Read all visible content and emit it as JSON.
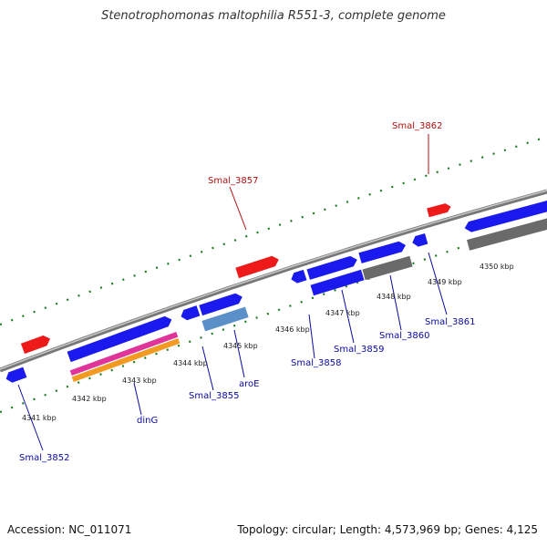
{
  "title": "Stenotrophomonas maltophilia R551-3, complete genome",
  "footer": {
    "accession": "Accession: NC_011071",
    "topology": "Topology: circular; Length: 4,573,969 bp; Genes: 4,125"
  },
  "colors": {
    "backbone": "#8c8c8c",
    "cds": "#1a1aee",
    "pseudo_or_red": "#ee1a1a",
    "grey_gene": "#6a6a6a",
    "tick": "#1e7b1e",
    "label_blue": "#0a0aa0",
    "label_red": "#b01010",
    "steel": "#5b8fc7",
    "pink": "#e0349a",
    "orange": "#f39a22"
  },
  "kbp_labels": [
    "4341 kbp",
    "4342 kbp",
    "4343 kbp",
    "4344 kbp",
    "4345 kbp",
    "4346 kbp",
    "4347 kbp",
    "4348 kbp",
    "4349 kbp",
    "4350 kbp"
  ],
  "gene_labels": {
    "Smal_3862": "Smal_3862",
    "Smal_3857": "Smal_3857",
    "Smal_3852": "Smal_3852",
    "dinG": "dinG",
    "Smal_3855": "Smal_3855",
    "aroE": "aroE",
    "Smal_3858": "Smal_3858",
    "Smal_3859": "Smal_3859",
    "Smal_3860": "Smal_3860",
    "Smal_3861": "Smal_3861"
  }
}
